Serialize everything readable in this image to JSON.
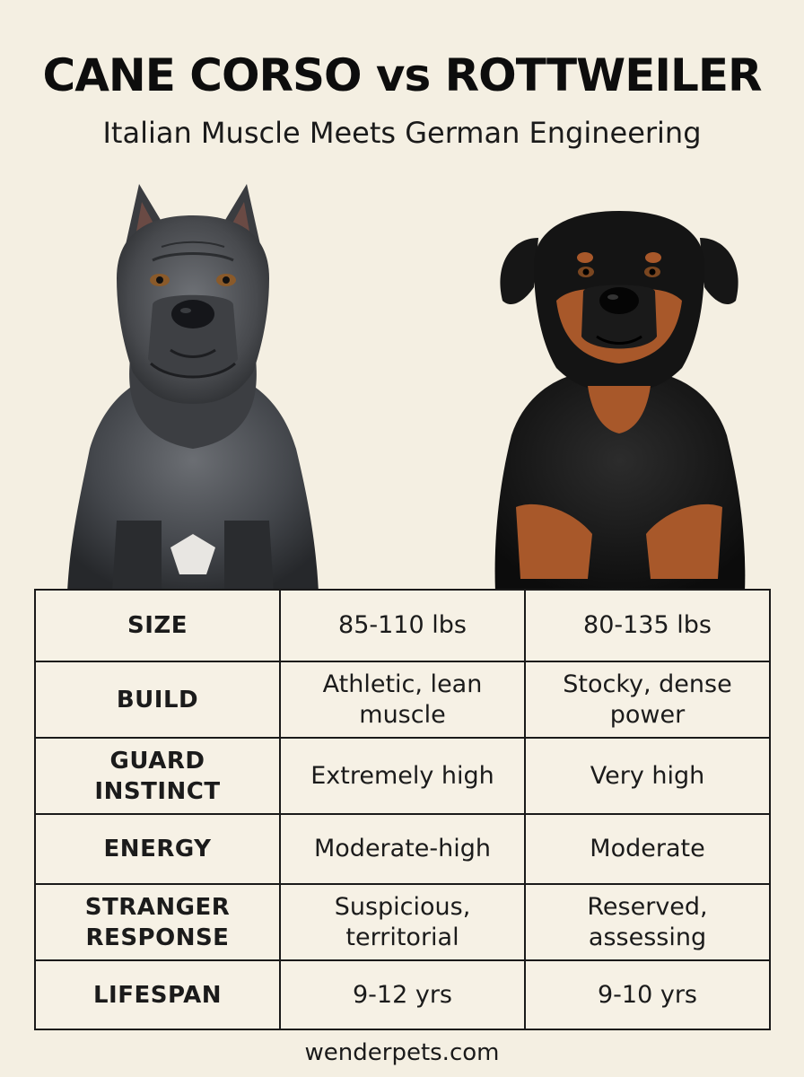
{
  "header": {
    "title": "CANE CORSO vs ROTTWEILER",
    "subtitle": "Italian Muscle Meets German Engineering"
  },
  "images": {
    "left_dog": "cane-corso-illustration",
    "right_dog": "rottweiler-illustration"
  },
  "table": {
    "rows": [
      {
        "label": "SIZE",
        "cane_corso": "85-110 lbs",
        "rottweiler": "80-135 lbs"
      },
      {
        "label": "BUILD",
        "cane_corso": "Athletic, lean muscle",
        "rottweiler": "Stocky, dense power"
      },
      {
        "label": "GUARD INSTINCT",
        "cane_corso": "Extremely high",
        "rottweiler": "Very high"
      },
      {
        "label": "ENERGY",
        "cane_corso": "Moderate-high",
        "rottweiler": "Moderate"
      },
      {
        "label": "STRANGER RESPONSE",
        "cane_corso": "Suspicious, territorial",
        "rottweiler": "Reserved, assessing"
      },
      {
        "label": "LIFESPAN",
        "cane_corso": "9-12 yrs",
        "rottweiler": "9-10 yrs"
      }
    ]
  },
  "footer": {
    "site": "wenderpets.com"
  },
  "colors": {
    "background": "#f4efe2",
    "text": "#111111",
    "corso_coat": "#3f4145",
    "rott_black": "#141414",
    "rott_tan": "#a8582a"
  }
}
